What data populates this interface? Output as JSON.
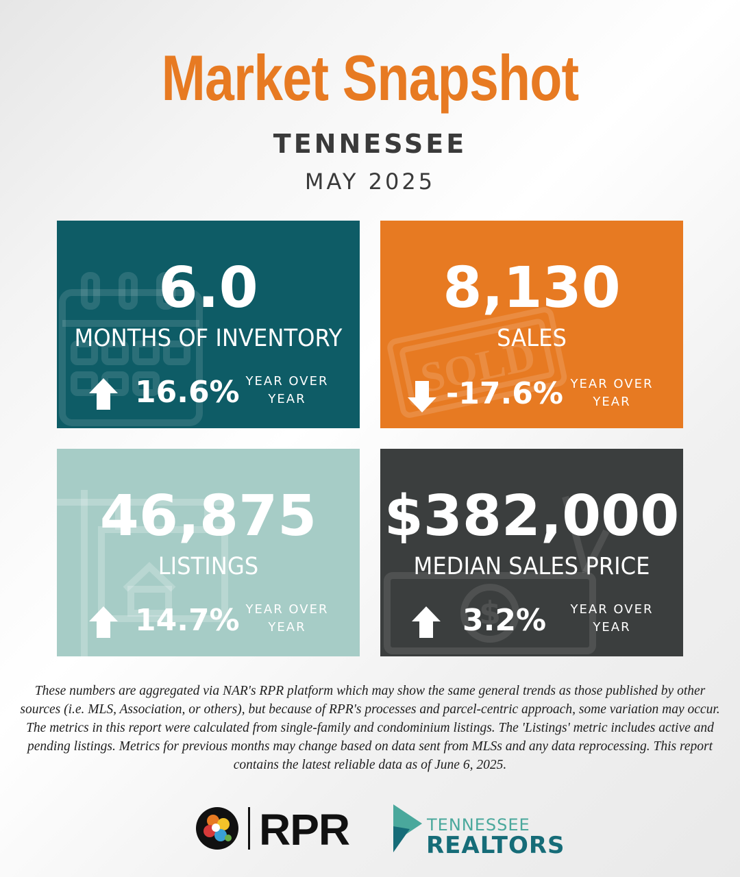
{
  "header": {
    "title": "Market Snapshot",
    "state": "TENNESSEE",
    "period": "MAY 2025"
  },
  "metrics": [
    {
      "value": "6.0",
      "label": "MONTHS OF INVENTORY",
      "change": "16.6%",
      "direction": "up",
      "change_label_1": "YEAR OVER",
      "change_label_2": "YEAR",
      "color": "#0e5c66",
      "icon": "calendar-icon"
    },
    {
      "value": "8,130",
      "label": "SALES",
      "change": "-17.6%",
      "direction": "down",
      "change_label_1": "YEAR OVER",
      "change_label_2": "YEAR",
      "color": "#e77a22",
      "icon": "sold-stamp-icon",
      "stamp_text": "SOLD"
    },
    {
      "value": "46,875",
      "label": "LISTINGS",
      "change": "14.7%",
      "direction": "up",
      "change_label_1": "YEAR OVER",
      "change_label_2": "YEAR",
      "color": "#a6ccc6",
      "icon": "for-sale-sign-icon"
    },
    {
      "value": "$382,000",
      "label": "MEDIAN SALES PRICE",
      "change": "3.2%",
      "direction": "up",
      "change_label_1": "YEAR OVER",
      "change_label_2": "YEAR",
      "color": "#3b3e3e",
      "icon": "money-icon"
    }
  ],
  "disclaimer": "These numbers are aggregated via NAR's RPR platform which may show the same general trends as those published by other sources (i.e. MLS, Association, or others), but because of RPR's processes and parcel-centric approach, some variation may occur. The metrics in this report were calculated from single-family and condominium listings. The 'Listings' metric includes active and pending listings. Metrics for previous months may change based on data sent from MLSs and any data reprocessing. This report contains the latest reliable data as of June 6, 2025.",
  "logos": {
    "rpr": "RPR",
    "tn_line1": "TENNESSEE",
    "tn_line2": "REALTORS"
  },
  "colors": {
    "accent": "#e77a22",
    "teal": "#0e5c66",
    "mint": "#a6ccc6",
    "charcoal": "#3b3e3e"
  }
}
